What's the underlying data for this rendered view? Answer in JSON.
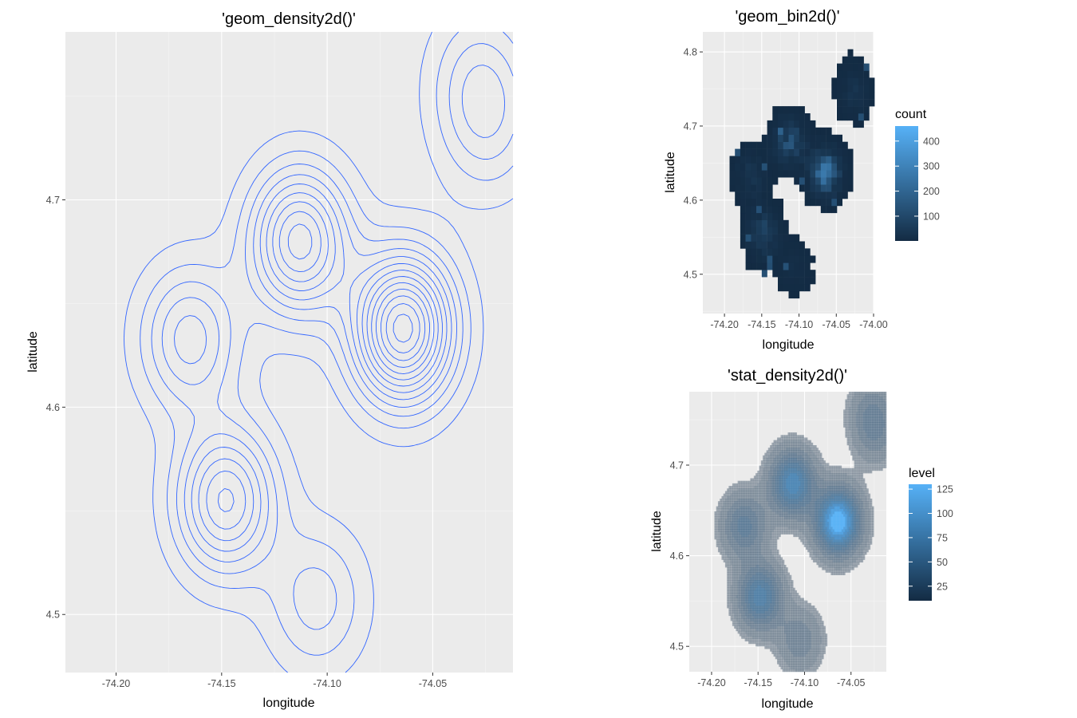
{
  "colors": {
    "panel_bg": "#ebebeb",
    "grid_major": "#ffffff",
    "contour_line": "#3366ff",
    "fill_low": "#132b43",
    "fill_high": "#56b1f7"
  },
  "chart_data": [
    {
      "type": "contour",
      "title": "'geom_density2d()'",
      "xlabel": "longitude",
      "ylabel": "latitude",
      "xlim": [
        -74.224,
        -74.012
      ],
      "ylim": [
        4.472,
        4.781
      ],
      "xticks": [
        -74.2,
        -74.15,
        -74.1,
        -74.05
      ],
      "xtick_labels": [
        "-74.20",
        "-74.15",
        "-74.10",
        "-74.05"
      ],
      "yticks": [
        4.5,
        4.6,
        4.7
      ],
      "ytick_labels": [
        "4.5",
        "4.6",
        "4.7"
      ],
      "grid": true,
      "density_peaks": [
        {
          "x": -74.064,
          "y": 4.638,
          "relative_height": 1.0
        },
        {
          "x": -74.113,
          "y": 4.68,
          "relative_height": 0.7
        },
        {
          "x": -74.148,
          "y": 4.555,
          "relative_height": 0.6
        },
        {
          "x": -74.165,
          "y": 4.633,
          "relative_height": 0.4
        },
        {
          "x": -74.105,
          "y": 4.507,
          "relative_height": 0.25
        },
        {
          "x": -74.028,
          "y": 4.76,
          "relative_height": 0.2
        },
        {
          "x": -74.024,
          "y": 4.735,
          "relative_height": 0.2
        }
      ]
    },
    {
      "type": "heatmap",
      "title": "'geom_bin2d()'",
      "xlabel": "longitude",
      "ylabel": "latitude",
      "xlim": [
        -74.229,
        -74.0
      ],
      "ylim": [
        4.447,
        4.827
      ],
      "xticks": [
        -74.2,
        -74.15,
        -74.1,
        -74.05,
        -74.0
      ],
      "xtick_labels": [
        "-74.20",
        "-74.15",
        "-74.10",
        "-74.05",
        "-74.00"
      ],
      "yticks": [
        4.5,
        4.6,
        4.7,
        4.8
      ],
      "ytick_labels": [
        "4.5",
        "4.6",
        "4.7",
        "4.8"
      ],
      "legend": {
        "title": "count",
        "min": 1,
        "max": 460,
        "ticks": [
          100,
          200,
          300,
          400
        ],
        "tick_labels": [
          "100",
          "200",
          "300",
          "400"
        ],
        "position": "right"
      },
      "grid": true
    },
    {
      "type": "filled-contour",
      "title": "'stat_density2d()'",
      "xlabel": "longitude",
      "ylabel": "latitude",
      "xlim": [
        -74.224,
        -74.012
      ],
      "ylim": [
        4.472,
        4.781
      ],
      "xticks": [
        -74.2,
        -74.15,
        -74.1,
        -74.05
      ],
      "xtick_labels": [
        "-74.20",
        "-74.15",
        "-74.10",
        "-74.05"
      ],
      "yticks": [
        4.5,
        4.6,
        4.7
      ],
      "ytick_labels": [
        "4.5",
        "4.6",
        "4.7"
      ],
      "legend": {
        "title": "level",
        "min": 10,
        "max": 130,
        "ticks": [
          25,
          50,
          75,
          100,
          125
        ],
        "tick_labels": [
          "25",
          "50",
          "75",
          "100",
          "125"
        ],
        "position": "right"
      },
      "grid": true
    }
  ]
}
